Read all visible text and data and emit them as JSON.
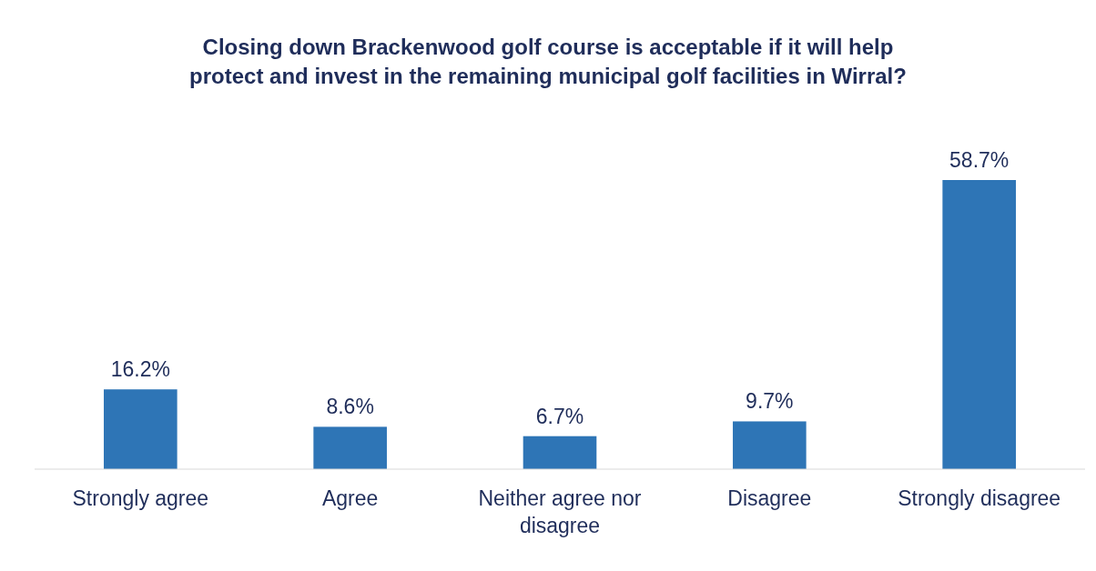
{
  "chart_data": {
    "type": "bar",
    "title": "Closing down Brackenwood golf course is acceptable if it will help protect and invest in the remaining municipal golf facilities in Wirral?",
    "categories": [
      "Strongly agree",
      "Agree",
      "Neither agree nor disagree",
      "Disagree",
      "Strongly disagree"
    ],
    "values": [
      16.2,
      8.6,
      6.7,
      9.7,
      58.7
    ],
    "value_labels": [
      "16.2%",
      "8.6%",
      "6.7%",
      "9.7%",
      "58.7%"
    ],
    "color": "#2e75b6"
  }
}
